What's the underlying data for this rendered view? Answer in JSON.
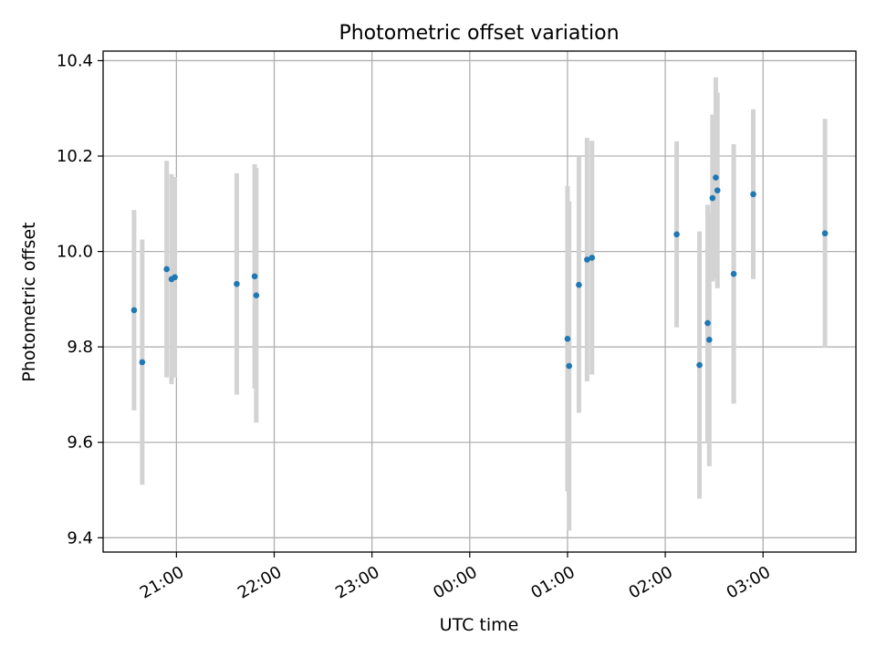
{
  "chart_data": {
    "type": "scatter",
    "title": "Photometric offset variation",
    "xlabel": "UTC time",
    "ylabel": "Photometric offset",
    "grid": true,
    "x_tick_labels": [
      "21:00",
      "22:00",
      "23:00",
      "00:00",
      "01:00",
      "02:00",
      "03:00"
    ],
    "x_ticks_hours": [
      21,
      22,
      23,
      24,
      25,
      26,
      27
    ],
    "xlim_hours": [
      20.25,
      27.95
    ],
    "y_ticks": [
      9.4,
      9.6,
      9.8,
      10.0,
      10.2,
      10.4
    ],
    "y_tick_labels": [
      "9.4",
      "9.6",
      "9.8",
      "10.0",
      "10.2",
      "10.4"
    ],
    "ylim": [
      9.37,
      10.42
    ],
    "colors": {
      "point": "#1f77b4",
      "errorbar": "#d3d3d3",
      "grid": "#b0b0b0"
    },
    "series": [
      {
        "points": [
          {
            "x": "20:34",
            "y": 9.877,
            "yerr": 0.21
          },
          {
            "x": "20:39",
            "y": 9.768,
            "yerr": 0.257
          },
          {
            "x": "20:54",
            "y": 9.963,
            "yerr": 0.227
          },
          {
            "x": "20:57",
            "y": 9.942,
            "yerr": 0.22
          },
          {
            "x": "20:59",
            "y": 9.946,
            "yerr": 0.21
          },
          {
            "x": "21:37",
            "y": 9.932,
            "yerr": 0.232
          },
          {
            "x": "21:48",
            "y": 9.948,
            "yerr": 0.235
          },
          {
            "x": "21:49",
            "y": 9.908,
            "yerr": 0.267
          },
          {
            "x": "01:00",
            "y": 9.817,
            "yerr": 0.32
          },
          {
            "x": "01:01",
            "y": 9.76,
            "yerr": 0.345
          },
          {
            "x": "01:07",
            "y": 9.93,
            "yerr": 0.268
          },
          {
            "x": "01:12",
            "y": 9.983,
            "yerr": 0.255
          },
          {
            "x": "01:15",
            "y": 9.987,
            "yerr": 0.245
          },
          {
            "x": "02:07",
            "y": 10.036,
            "yerr": 0.195
          },
          {
            "x": "02:21",
            "y": 9.762,
            "yerr": 0.28
          },
          {
            "x": "02:26",
            "y": 9.85,
            "yerr": 0.248
          },
          {
            "x": "02:27",
            "y": 9.815,
            "yerr": 0.265
          },
          {
            "x": "02:29",
            "y": 10.112,
            "yerr": 0.175
          },
          {
            "x": "02:31",
            "y": 10.155,
            "yerr": 0.21
          },
          {
            "x": "02:32",
            "y": 10.128,
            "yerr": 0.205
          },
          {
            "x": "02:42",
            "y": 9.953,
            "yerr": 0.272
          },
          {
            "x": "02:54",
            "y": 10.12,
            "yerr": 0.178
          },
          {
            "x": "03:38",
            "y": 10.038,
            "yerr": 0.24
          }
        ]
      }
    ]
  }
}
